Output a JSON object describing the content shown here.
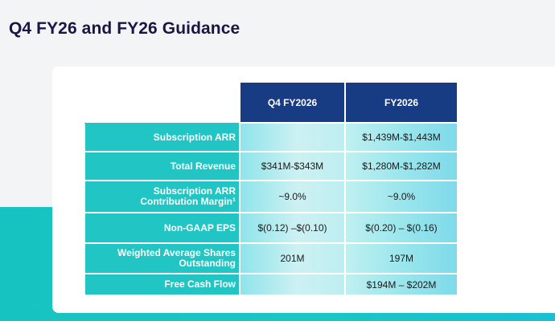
{
  "page": {
    "title": "Q4 FY26 and FY26 Guidance"
  },
  "colors": {
    "title": "#1b1444",
    "header_bg": "#183c84",
    "label_bg": "#21c6c4",
    "teal_band": "#17c3c0",
    "card_bg": "#ffffff"
  },
  "table": {
    "columns": [
      "Q4 FY2026",
      "FY2026"
    ],
    "rows": [
      {
        "label_lines": [
          "Subscription ARR"
        ],
        "q4": "",
        "fy": "$1,439M-$1,443M"
      },
      {
        "label_lines": [
          "Total Revenue"
        ],
        "q4": "$341M-$343M",
        "fy": "$1,280M-$1,282M"
      },
      {
        "label_lines": [
          "Subscription ARR",
          "Contribution Margin¹"
        ],
        "q4": "~9.0%",
        "fy": "~9.0%"
      },
      {
        "label_lines": [
          "Non-GAAP EPS"
        ],
        "q4": "$(0.12) –$(0.10)",
        "fy": "$(0.20) – $(0.16)"
      },
      {
        "label_lines": [
          "Weighted Average Shares",
          "Outstanding"
        ],
        "q4": "201M",
        "fy": "197M"
      },
      {
        "label_lines": [
          "Free Cash Flow"
        ],
        "q4": "",
        "fy": "$194M – $202M"
      }
    ]
  }
}
